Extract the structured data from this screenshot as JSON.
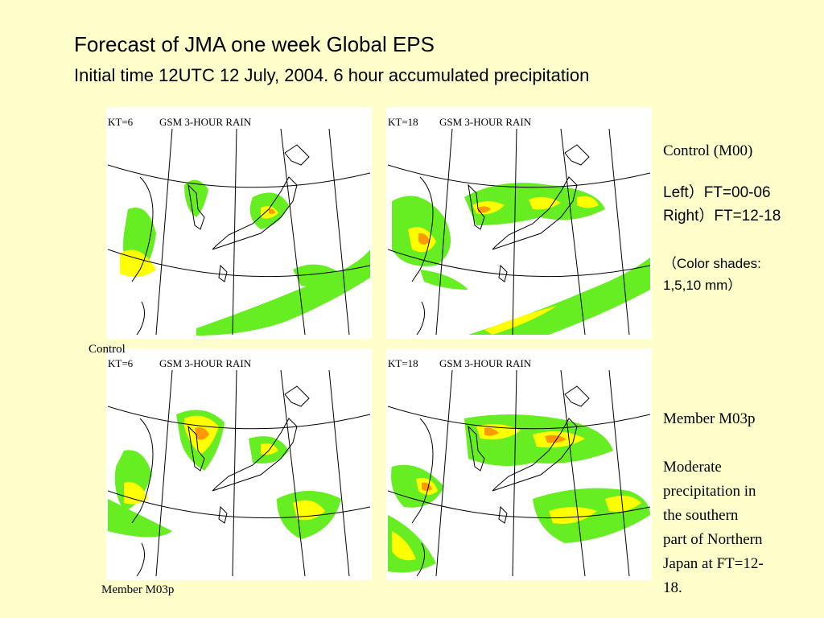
{
  "slide": {
    "title": "Forecast of JMA one week Global EPS",
    "subtitle": "Initial time 12UTC 12 July, 2004. 6 hour accumulated precipitation"
  },
  "panels": [
    {
      "kt": "KT=6",
      "header": "GSM 3-HOUR RAIN"
    },
    {
      "kt": "KT=18",
      "header": "GSM 3-HOUR RAIN"
    },
    {
      "kt": "KT=6",
      "header": "GSM 3-HOUR RAIN"
    },
    {
      "kt": "KT=18",
      "header": "GSM 3-HOUR RAIN"
    }
  ],
  "labels": {
    "control": "Control",
    "member": "Member M03p"
  },
  "notes": {
    "control_title": "Control (M00)",
    "left_line": "Left）FT=00-06",
    "right_line": "Right）FT=12-18",
    "color_line1": "（Color shades:",
    "color_line2": "1,5,10 mm）",
    "member_title": "Member M03p",
    "member_desc": [
      "Moderate",
      "precipitation in",
      "the southern",
      "part of Northern",
      "Japan at FT=12-",
      "18."
    ]
  },
  "colors": {
    "background": "#ffffcc",
    "rain_1mm": "#66ee22",
    "rain_5mm": "#ffff00",
    "rain_10mm": "#ff9900"
  }
}
